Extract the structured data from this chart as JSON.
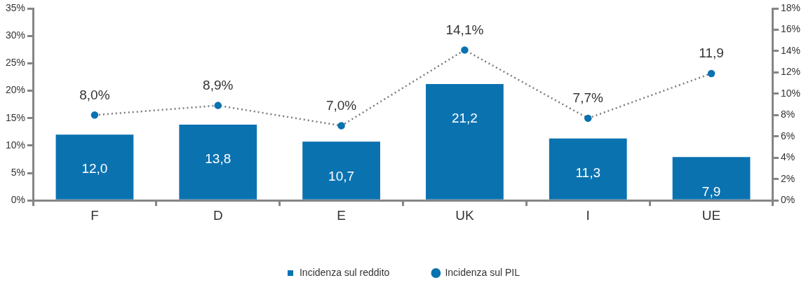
{
  "chart_data": {
    "type": "bar",
    "categories": [
      "F",
      "D",
      "E",
      "UK",
      "I",
      "UE"
    ],
    "series": [
      {
        "name": "Incidenza sul reddito",
        "color": "#0b72b0",
        "values": [
          12.0,
          13.8,
          10.7,
          21.2,
          11.3,
          7.9
        ],
        "value_labels": [
          "12,0",
          "13,8",
          "10,7",
          "21,2",
          "11,3",
          "7,9"
        ]
      },
      {
        "name": "Incidenza sul PIL",
        "type": "line",
        "axis": "y2",
        "color": "#0b72b0",
        "values": [
          8.0,
          8.9,
          7.0,
          14.1,
          7.7,
          11.9
        ],
        "value_labels": [
          "8,0%",
          "8,9%",
          "7,0%",
          "14,1%",
          "7,7%",
          "11,9"
        ]
      }
    ],
    "ylim": [
      0,
      35
    ],
    "yticks": [
      {
        "value": 0,
        "label": "0%"
      },
      {
        "value": 5,
        "label": "5%"
      },
      {
        "value": 10,
        "label": "10%"
      },
      {
        "value": 15,
        "label": "15%"
      },
      {
        "value": 20,
        "label": "20%"
      },
      {
        "value": 25,
        "label": "25%"
      },
      {
        "value": 30,
        "label": "30%"
      },
      {
        "value": 35,
        "label": "35%"
      }
    ],
    "y2lim": [
      0,
      18
    ],
    "y2ticks": [
      {
        "value": 0,
        "label": "0%"
      },
      {
        "value": 2,
        "label": "2%"
      },
      {
        "value": 4,
        "label": "4%"
      },
      {
        "value": 6,
        "label": "6%"
      },
      {
        "value": 8,
        "label": "8%"
      },
      {
        "value": 10,
        "label": "10%"
      },
      {
        "value": 12,
        "label": "12%"
      },
      {
        "value": 14,
        "label": "14%"
      },
      {
        "value": 16,
        "label": "16%"
      },
      {
        "value": 18,
        "label": "18%"
      }
    ],
    "grid": false,
    "legend": "bottom",
    "marker": "circle",
    "line_style": "dotted"
  }
}
